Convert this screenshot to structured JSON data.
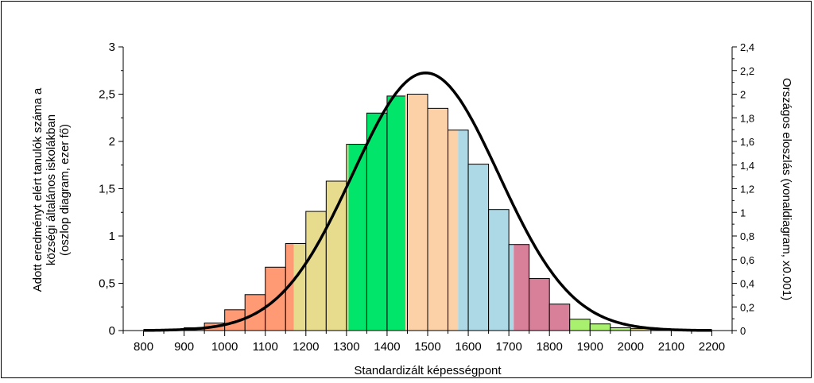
{
  "chart_data": {
    "type": "bar",
    "xlabel": "Standardizált képességpont",
    "ylabel_left_lines": [
      "Adott eredményt elért tanulók száma a",
      "községi általános iskolákban",
      "(oszlop diagram, ezer fő)"
    ],
    "ylabel_right": "Országos eloszlás (vonaldiagram, x0.001)",
    "xlim": [
      750,
      2250
    ],
    "ylim_left": [
      0,
      3
    ],
    "ylim_right": [
      0,
      2.4
    ],
    "x_ticks": [
      "800",
      "900",
      "1000",
      "1100",
      "1200",
      "1300",
      "1400",
      "1500",
      "1600",
      "1700",
      "1800",
      "1900",
      "2000",
      "2100",
      "2200"
    ],
    "y_ticks_left": [
      "0",
      "0,5",
      "1",
      "1,5",
      "2",
      "2,5",
      "3"
    ],
    "y_ticks_right": [
      "0",
      "0,2",
      "0,4",
      "0,6",
      "0,8",
      "1",
      "1,2",
      "1,4",
      "1,6",
      "1,8",
      "2",
      "2,2",
      "2,4"
    ],
    "bin_width": 50,
    "bars": [
      {
        "x": 800,
        "value": 0.0,
        "color": "#ff9a74"
      },
      {
        "x": 850,
        "value": 0.01,
        "color": "#ff9a74"
      },
      {
        "x": 900,
        "value": 0.03,
        "color": "#ff9a74"
      },
      {
        "x": 950,
        "value": 0.08,
        "color": "#ff9a74"
      },
      {
        "x": 1000,
        "value": 0.22,
        "color": "#ff9a74"
      },
      {
        "x": 1050,
        "value": 0.38,
        "color": "#ff9a74"
      },
      {
        "x": 1100,
        "value": 0.67,
        "color": "#ff9a74"
      },
      {
        "x": 1150,
        "value": 0.92,
        "color": "#e7dc8d",
        "split": {
          "at": 1170,
          "left_color": "#ff9a74"
        }
      },
      {
        "x": 1200,
        "value": 1.26,
        "color": "#e7dc8d"
      },
      {
        "x": 1250,
        "value": 1.58,
        "color": "#e7dc8d"
      },
      {
        "x": 1300,
        "value": 1.97,
        "color": "#00e56a",
        "split": {
          "at": 1305,
          "left_color": "#e7dc8d"
        }
      },
      {
        "x": 1350,
        "value": 2.3,
        "color": "#00e56a"
      },
      {
        "x": 1400,
        "value": 2.48,
        "color": "#00e56a"
      },
      {
        "x": 1450,
        "value": 2.5,
        "color": "#fcd1a8",
        "split": {
          "at": 1445,
          "left_color": "#00e56a"
        }
      },
      {
        "x": 1500,
        "value": 2.35,
        "color": "#fcd1a8"
      },
      {
        "x": 1550,
        "value": 2.12,
        "color": "#add8e6",
        "split": {
          "at": 1575,
          "left_color": "#fcd1a8"
        }
      },
      {
        "x": 1600,
        "value": 1.76,
        "color": "#add8e6"
      },
      {
        "x": 1650,
        "value": 1.28,
        "color": "#add8e6"
      },
      {
        "x": 1700,
        "value": 0.91,
        "color": "#d8809a",
        "split": {
          "at": 1712,
          "left_color": "#add8e6"
        }
      },
      {
        "x": 1750,
        "value": 0.55,
        "color": "#d8809a"
      },
      {
        "x": 1800,
        "value": 0.28,
        "color": "#d8809a"
      },
      {
        "x": 1850,
        "value": 0.12,
        "color": "#a8f06e"
      },
      {
        "x": 1900,
        "value": 0.07,
        "color": "#a8f06e"
      },
      {
        "x": 1950,
        "value": 0.03,
        "color": "#a8f06e"
      },
      {
        "x": 2000,
        "value": 0.02,
        "color": "#e7dc8d"
      },
      {
        "x": 2050,
        "value": 0.01,
        "color": "#e7dc8d"
      },
      {
        "x": 2100,
        "value": 0.0,
        "color": "#e7dc8d"
      },
      {
        "x": 2150,
        "value": 0.0,
        "color": "#e7dc8d"
      }
    ],
    "curve": {
      "type": "normal",
      "mean": 1495,
      "sd": 180,
      "peak": 2.18,
      "x_range": [
        800,
        2200
      ],
      "color": "#000000"
    },
    "grid": false,
    "legend": "none"
  }
}
